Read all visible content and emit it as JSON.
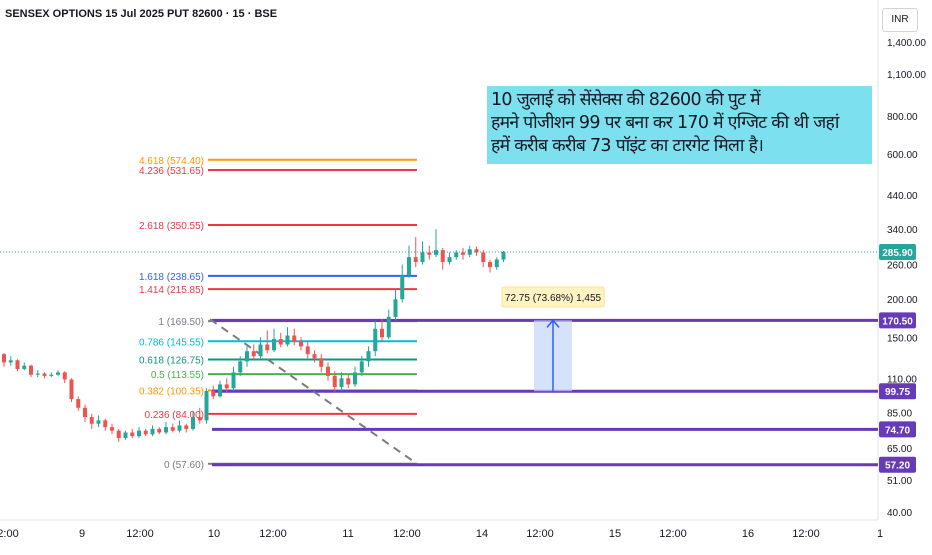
{
  "header": {
    "title": "SENSEX OPTIONS 15 Jul 2025 PUT 82600 · 15 · BSE",
    "currency": "INR"
  },
  "annotation": {
    "lines": [
      "10 जुलाई को सेंसेक्स की 82600 की पुट में",
      "हमने पोजीशन 99 पर बना कर 170 में एग्जिट की थी जहां",
      " हमें करीब करीब 73 पॉइंट का टारगेट मिला है।"
    ]
  },
  "measure": {
    "label": "72.75 (73.68%) 1,455"
  },
  "colors": {
    "up": "#26a69a",
    "down": "#ef5350",
    "price_line": "#26a69a",
    "hline": "#673ab7",
    "measure_fill": "#c5d5f7",
    "measure_line": "#2962ff",
    "annotation_bg": "#7de0ef"
  },
  "chart_data": {
    "type": "candlestick",
    "title": "SENSEX OPTIONS 15 Jul 2025 PUT 82600 · 15 · BSE",
    "y_scale": "log",
    "ylim": [
      37,
      1500
    ],
    "y_ticks": [
      "1,400.00",
      "1,100.00",
      "800.00",
      "600.00",
      "440.00",
      "340.00",
      "260.00",
      "200.00",
      "150.00",
      "110.00",
      "85.00",
      "65.00",
      "51.00",
      "40.00"
    ],
    "y_tick_values": [
      1400,
      1100,
      800,
      600,
      440,
      340,
      260,
      200,
      150,
      110,
      85,
      65,
      51,
      40
    ],
    "x_ticks": [
      "2:00",
      "9",
      "12:00",
      "10",
      "12:00",
      "11",
      "12:00",
      "14",
      "12:00",
      "15",
      "12:00",
      "16",
      "12:00",
      "1"
    ],
    "last_price": {
      "value": 285.9,
      "label": "285.90"
    },
    "price_badges": [
      {
        "value": 170.5,
        "label": "170.50"
      },
      {
        "value": 99.75,
        "label": "99.75"
      },
      {
        "value": 74.7,
        "label": "74.70"
      },
      {
        "value": 57.2,
        "label": "57.20"
      }
    ],
    "fibonacci": [
      {
        "label": "0 (57.60)",
        "value": 57.6,
        "color": "#787b86"
      },
      {
        "label": "0.236 (84.00)",
        "value": 84.0,
        "color": "#f23645"
      },
      {
        "label": "0.382 (100.35)",
        "value": 100.35,
        "color": "#ff9800"
      },
      {
        "label": "0.5 (113.55)",
        "value": 113.55,
        "color": "#4caf50"
      },
      {
        "label": "0.618 (126.75)",
        "value": 126.75,
        "color": "#089981"
      },
      {
        "label": "0.786 (145.55)",
        "value": 145.55,
        "color": "#00bcd4"
      },
      {
        "label": "1 (169.50)",
        "value": 169.5,
        "color": "#787b86"
      },
      {
        "label": "1.414 (215.85)",
        "value": 215.85,
        "color": "#f23645"
      },
      {
        "label": "1.618 (238.65)",
        "value": 238.65,
        "color": "#2962ff"
      },
      {
        "label": "2.618 (350.55)",
        "value": 350.55,
        "color": "#f23645"
      },
      {
        "label": "4.236 (531.65)",
        "value": 531.65,
        "color": "#f23645"
      },
      {
        "label": "4.618 (574.40)",
        "value": 574.4,
        "color": "#ff9800"
      }
    ],
    "candles": [
      [
        132,
        124,
        133,
        120
      ],
      [
        124,
        126,
        130,
        121
      ],
      [
        126,
        118,
        127,
        116
      ],
      [
        118,
        121,
        124,
        117
      ],
      [
        121,
        113,
        122,
        111
      ],
      [
        113,
        114,
        117,
        111
      ],
      [
        114,
        112,
        115,
        110
      ],
      [
        112,
        113,
        115,
        111
      ],
      [
        113,
        115,
        117,
        112
      ],
      [
        115,
        109,
        116,
        106
      ],
      [
        109,
        94,
        110,
        92
      ],
      [
        94,
        88,
        96,
        86
      ],
      [
        88,
        82,
        90,
        79
      ],
      [
        82,
        78,
        84,
        75
      ],
      [
        78,
        80,
        83,
        76
      ],
      [
        80,
        76,
        81,
        74
      ],
      [
        76,
        74,
        78,
        72
      ],
      [
        74,
        70,
        75,
        68
      ],
      [
        70,
        73,
        74,
        69
      ],
      [
        73,
        71,
        75,
        70
      ],
      [
        71,
        74,
        76,
        70
      ],
      [
        74,
        72,
        75,
        71
      ],
      [
        72,
        75,
        77,
        71
      ],
      [
        75,
        73,
        76,
        72
      ],
      [
        73,
        76,
        79,
        72
      ],
      [
        76,
        74,
        78,
        73
      ],
      [
        74,
        77,
        80,
        73
      ],
      [
        77,
        75,
        78,
        73
      ],
      [
        75,
        82,
        86,
        74
      ],
      [
        82,
        80,
        88,
        78
      ],
      [
        80,
        100,
        102,
        78
      ],
      [
        100,
        96,
        104,
        94
      ],
      [
        96,
        105,
        108,
        95
      ],
      [
        105,
        102,
        110,
        99
      ],
      [
        102,
        115,
        120,
        100
      ],
      [
        115,
        125,
        130,
        112
      ],
      [
        125,
        135,
        140,
        120
      ],
      [
        135,
        130,
        142,
        127
      ],
      [
        130,
        142,
        150,
        128
      ],
      [
        142,
        136,
        158,
        133
      ],
      [
        136,
        148,
        160,
        134
      ],
      [
        148,
        142,
        155,
        139
      ],
      [
        142,
        152,
        162,
        140
      ],
      [
        152,
        145,
        160,
        141
      ],
      [
        145,
        140,
        150,
        136
      ],
      [
        140,
        132,
        145,
        128
      ],
      [
        132,
        128,
        136,
        124
      ],
      [
        128,
        120,
        132,
        115
      ],
      [
        120,
        112,
        124,
        108
      ],
      [
        112,
        103,
        116,
        99
      ],
      [
        103,
        110,
        115,
        100
      ],
      [
        110,
        105,
        113,
        102
      ],
      [
        105,
        115,
        120,
        103
      ],
      [
        115,
        125,
        130,
        112
      ],
      [
        125,
        135,
        140,
        120
      ],
      [
        135,
        160,
        170,
        130
      ],
      [
        160,
        150,
        172,
        145
      ],
      [
        150,
        175,
        185,
        148
      ],
      [
        175,
        200,
        215,
        170
      ],
      [
        200,
        240,
        260,
        195
      ],
      [
        240,
        275,
        300,
        235
      ],
      [
        275,
        265,
        320,
        255
      ],
      [
        265,
        285,
        310,
        260
      ],
      [
        285,
        280,
        300,
        270
      ],
      [
        280,
        290,
        340,
        275
      ],
      [
        290,
        265,
        295,
        250
      ],
      [
        265,
        275,
        285,
        260
      ],
      [
        275,
        285,
        290,
        270
      ],
      [
        285,
        280,
        295,
        270
      ],
      [
        280,
        292,
        300,
        275
      ],
      [
        292,
        285,
        298,
        278
      ],
      [
        285,
        265,
        290,
        255
      ],
      [
        265,
        255,
        270,
        245
      ],
      [
        255,
        270,
        275,
        250
      ],
      [
        270,
        286,
        288,
        265
      ]
    ]
  }
}
